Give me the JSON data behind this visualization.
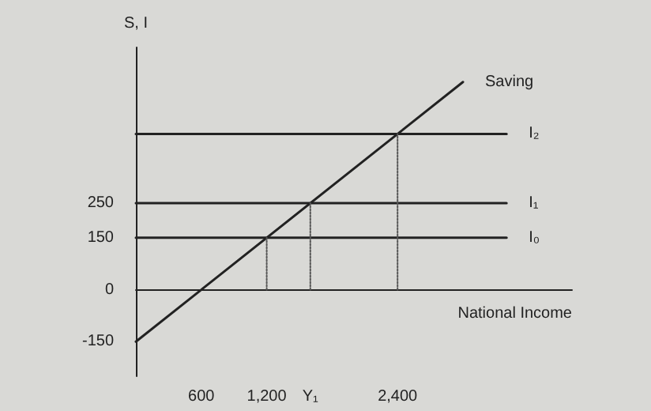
{
  "chart_data": {
    "type": "line",
    "xlabel": "National Income",
    "ylabel": "S, I",
    "xlim": [
      0,
      4000
    ],
    "ylim": [
      -250,
      700
    ],
    "xticks": [
      600,
      {
        "value": 1200,
        "label": "1,200"
      },
      {
        "value": 1600,
        "label": "Y₁"
      },
      {
        "value": 2400,
        "label": "2,400"
      }
    ],
    "yticks": [
      -150,
      0,
      150,
      250
    ],
    "grid": false,
    "legend": false,
    "marker": "none",
    "series": [
      {
        "name": "Saving",
        "color": "#222222",
        "x": [
          0,
          3000
        ],
        "values": [
          -150,
          600
        ]
      },
      {
        "name": "I₂",
        "color": "#222222",
        "x": [
          0,
          3400
        ],
        "values": [
          450,
          450
        ]
      },
      {
        "name": "I₁",
        "color": "#222222",
        "x": [
          0,
          3400
        ],
        "values": [
          250,
          250
        ]
      },
      {
        "name": "I₀",
        "color": "#222222",
        "x": [
          0,
          3400
        ],
        "values": [
          150,
          150
        ]
      },
      {
        "color": "#555555",
        "line_style": "dotted",
        "x": [
          1200,
          1200
        ],
        "values": [
          0,
          150
        ]
      },
      {
        "color": "#555555",
        "line_style": "dotted",
        "x": [
          1600,
          1600
        ],
        "values": [
          0,
          250
        ]
      },
      {
        "color": "#555555",
        "line_style": "dotted",
        "x": [
          2400,
          2400
        ],
        "values": [
          0,
          450
        ]
      }
    ]
  }
}
